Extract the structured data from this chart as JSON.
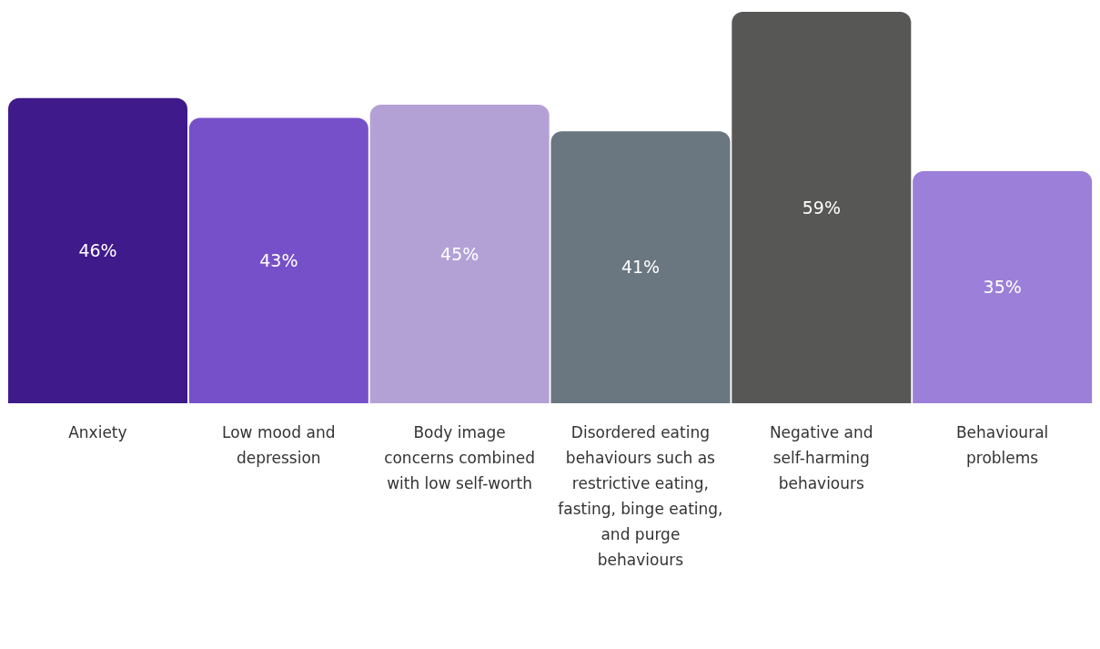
{
  "chart_data": {
    "type": "bar",
    "categories": [
      "Anxiety",
      "Low mood and depression",
      "Body image concerns combined with low self-worth",
      "Disordered eating behaviours such as restrictive eating, fasting, binge eating, and purge behaviours",
      "Negative and self-harming behaviours",
      "Behavioural problems"
    ],
    "values": [
      46,
      43,
      45,
      41,
      59,
      35
    ],
    "colors": [
      "#3f1a8a",
      "#7650c9",
      "#b3a1d6",
      "#6a7680",
      "#575755",
      "#9b7fd8"
    ],
    "value_labels": [
      "46%",
      "43%",
      "45%",
      "41%",
      "59%",
      "35%"
    ],
    "legend": false,
    "grid": false
  }
}
